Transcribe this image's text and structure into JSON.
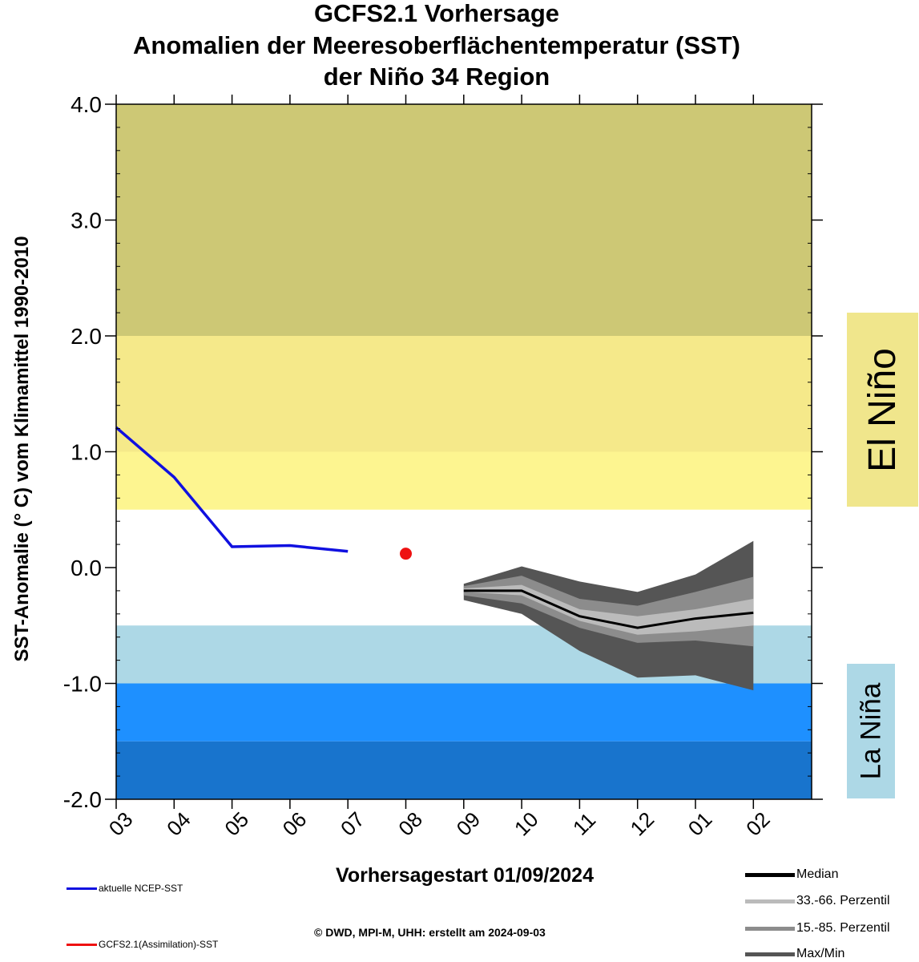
{
  "title_lines": [
    "GCFS2.1 Vorhersage",
    "Anomalien der Meeresoberflächentemperatur (SST)",
    "der Niño 34 Region"
  ],
  "ylabel": "SST-Anomalie (° C) vom Klimamittel 1990-2010",
  "xlabel": "Vorhersagestart  01/09/2024",
  "phase_labels": {
    "el_nino": "El Niño",
    "la_nina": "La Niña"
  },
  "legend_left": [
    {
      "label": "aktuelle NCEP-SST",
      "color": "#1010e0"
    },
    {
      "label": "GCFS2.1(Assimilation)-SST",
      "color": "#ee1111"
    }
  ],
  "legend_right": [
    {
      "label": "Median",
      "color": "#000000"
    },
    {
      "label": "33.-66. Perzentil",
      "color": "#bbbbbb"
    },
    {
      "label": "15.-85. Perzentil",
      "color": "#8c8c8c"
    },
    {
      "label": "Max/Min",
      "color": "#555555"
    }
  ],
  "credit": "©  DWD, MPI-M, UHH: erstellt am 2024-09-03",
  "chart_data": {
    "type": "line",
    "x_categories": [
      "03",
      "04",
      "05",
      "06",
      "07",
      "08",
      "09",
      "10",
      "11",
      "12",
      "01",
      "02"
    ],
    "ylim": [
      -2.0,
      4.0
    ],
    "y_ticks": [
      "4.0",
      "3.0",
      "2.0",
      "1.0",
      "0.0",
      "-1.0",
      "-2.0"
    ],
    "y_tick_values": [
      4.0,
      3.0,
      2.0,
      1.0,
      0.0,
      -1.0,
      -2.0
    ],
    "bands": [
      {
        "from": 2.0,
        "to": 4.0,
        "color": "#cdc875"
      },
      {
        "from": 1.0,
        "to": 2.0,
        "color": "#f5e98a"
      },
      {
        "from": 0.5,
        "to": 1.0,
        "color": "#fdf590"
      },
      {
        "from": -1.0,
        "to": -0.5,
        "color": "#add8e6"
      },
      {
        "from": -1.5,
        "to": -1.0,
        "color": "#1e90ff"
      },
      {
        "from": -2.0,
        "to": -1.5,
        "color": "#1874cd"
      }
    ],
    "observed": {
      "name": "aktuelle NCEP-SST",
      "color": "#1010e0",
      "x": [
        "03",
        "04",
        "05",
        "06",
        "07"
      ],
      "y": [
        1.21,
        0.78,
        0.18,
        0.19,
        0.14
      ]
    },
    "assimilation": {
      "name": "GCFS2.1(Assimilation)-SST",
      "color": "#ee1111",
      "x": "08",
      "y": 0.12
    },
    "forecast": {
      "x": [
        "09",
        "10",
        "11",
        "12",
        "01",
        "02"
      ],
      "median": [
        -0.2,
        -0.2,
        -0.42,
        -0.52,
        -0.44,
        -0.39
      ],
      "p33": [
        -0.21,
        -0.24,
        -0.46,
        -0.58,
        -0.55,
        -0.5
      ],
      "p66": [
        -0.18,
        -0.15,
        -0.36,
        -0.42,
        -0.36,
        -0.27
      ],
      "p15": [
        -0.24,
        -0.31,
        -0.52,
        -0.65,
        -0.63,
        -0.68
      ],
      "p85": [
        -0.16,
        -0.07,
        -0.27,
        -0.33,
        -0.21,
        -0.08
      ],
      "min": [
        -0.28,
        -0.4,
        -0.72,
        -0.95,
        -0.93,
        -1.06
      ],
      "max": [
        -0.14,
        0.01,
        -0.12,
        -0.21,
        -0.06,
        0.23
      ]
    }
  }
}
